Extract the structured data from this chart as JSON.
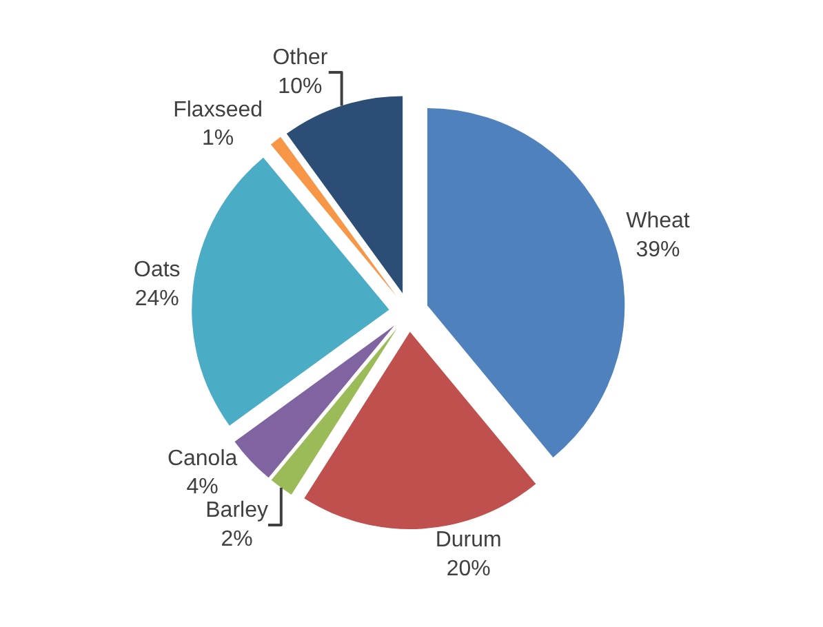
{
  "chart_data": {
    "type": "pie",
    "categories": [
      "Wheat",
      "Durum",
      "Barley",
      "Canola",
      "Oats",
      "Flaxseed",
      "Other"
    ],
    "values": [
      39,
      20,
      2,
      4,
      24,
      1,
      10
    ],
    "value_labels": [
      "39%",
      "20%",
      "2%",
      "4%",
      "24%",
      "1%",
      "10%"
    ],
    "colors": [
      "#4f81bd",
      "#c0504d",
      "#9bbb59",
      "#8064a2",
      "#4bacc6",
      "#f79646",
      "#2c4d75"
    ],
    "legend": false
  }
}
